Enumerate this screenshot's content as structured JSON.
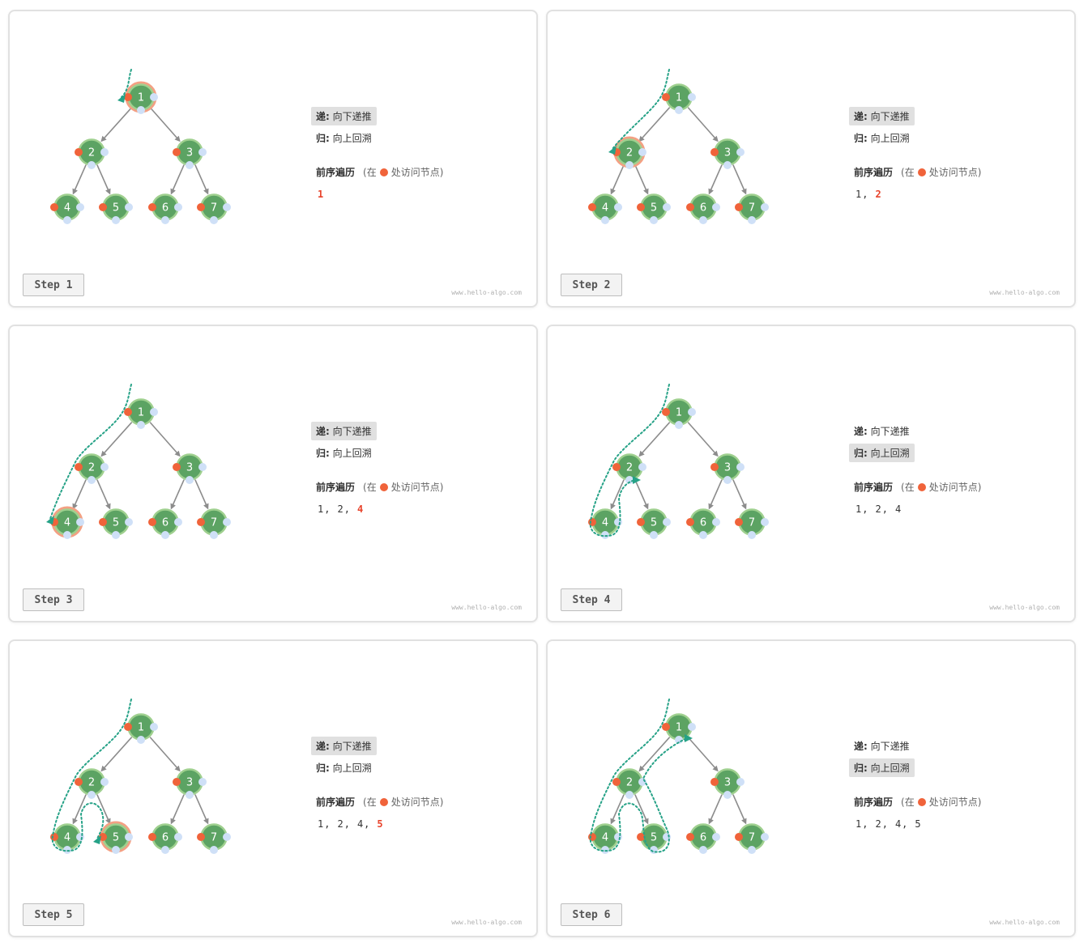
{
  "legend": {
    "push_label": "递:",
    "push_text": "向下递推",
    "pop_label": "归:",
    "pop_text": "向上回溯",
    "traversal_label": "前序遍历",
    "traversal_note_open": "(在",
    "traversal_note_close": "处访问节点)"
  },
  "watermark": "www.hello-algo.com",
  "colors": {
    "node_fill": "#5ca363",
    "node_ring": "#9fd08f",
    "visit_dot": "#f0633a",
    "side_dot": "#cfe0f7",
    "edge": "#8c8c8c",
    "path": "#26a287",
    "highlight": "#f3a083",
    "last_value": "#e8432b"
  },
  "tree": {
    "nodes": [
      {
        "id": 1,
        "label": "1",
        "parent": null
      },
      {
        "id": 2,
        "label": "2",
        "parent": 1
      },
      {
        "id": 3,
        "label": "3",
        "parent": 1
      },
      {
        "id": 4,
        "label": "4",
        "parent": 2
      },
      {
        "id": 5,
        "label": "5",
        "parent": 2
      },
      {
        "id": 6,
        "label": "6",
        "parent": 3
      },
      {
        "id": 7,
        "label": "7",
        "parent": 3
      }
    ]
  },
  "steps": [
    {
      "label": "Step 1",
      "phase": "push",
      "highlight": 1,
      "sequence": [
        "1"
      ]
    },
    {
      "label": "Step 2",
      "phase": "push",
      "highlight": 2,
      "sequence": [
        "1",
        "2"
      ]
    },
    {
      "label": "Step 3",
      "phase": "push",
      "highlight": 4,
      "sequence": [
        "1",
        "2",
        "4"
      ]
    },
    {
      "label": "Step 4",
      "phase": "pop",
      "highlight": null,
      "sequence": [
        "1",
        "2",
        "4"
      ]
    },
    {
      "label": "Step 5",
      "phase": "push",
      "highlight": 5,
      "sequence": [
        "1",
        "2",
        "4",
        "5"
      ]
    },
    {
      "label": "Step 6",
      "phase": "pop",
      "highlight": null,
      "sequence": [
        "1",
        "2",
        "4",
        "5"
      ]
    }
  ]
}
